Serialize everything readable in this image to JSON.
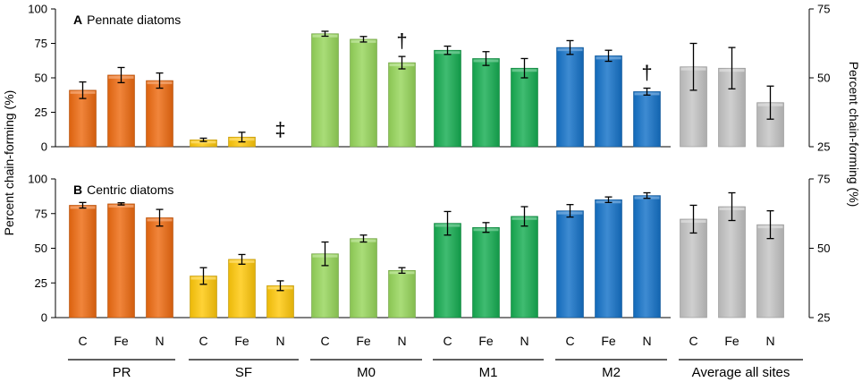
{
  "colors": {
    "PR": "#ee6a10",
    "SF": "#ffc80a",
    "M0": "#96d65a",
    "M1": "#16ad52",
    "M2": "#1472c8",
    "Average all sites": "#c4c4c4"
  },
  "chart_data": [
    {
      "type": "bar",
      "panel": "A",
      "title": "Pennate diatoms",
      "ylabel_left": "Percent chain-forming (%)",
      "ylabel_right": "Percent chain-forming (%)",
      "left_axis": {
        "ylim": [
          0,
          100
        ],
        "ticks": [
          "0",
          "25",
          "50",
          "75",
          "100"
        ]
      },
      "right_axis": {
        "ylim": [
          25,
          75
        ],
        "ticks": [
          "25",
          "50",
          "75"
        ]
      },
      "groups": [
        {
          "name": "PR",
          "axis": "left",
          "bars": [
            {
              "category": "C",
              "value": 41,
              "err": 6
            },
            {
              "category": "Fe",
              "value": 52,
              "err": 5.5
            },
            {
              "category": "N",
              "value": 48,
              "err": 5.5
            }
          ]
        },
        {
          "name": "SF",
          "axis": "left",
          "bars": [
            {
              "category": "C",
              "value": 5,
              "err": 1.2
            },
            {
              "category": "Fe",
              "value": 7,
              "err": 3.5
            },
            {
              "category": "N",
              "value": null,
              "err": null,
              "marker": "‡"
            }
          ]
        },
        {
          "name": "M0",
          "axis": "left",
          "bars": [
            {
              "category": "C",
              "value": 82,
              "err": 1.8
            },
            {
              "category": "Fe",
              "value": 78,
              "err": 2
            },
            {
              "category": "N",
              "value": 61,
              "err": 4.5,
              "marker": "†"
            }
          ]
        },
        {
          "name": "M1",
          "axis": "left",
          "bars": [
            {
              "category": "C",
              "value": 70,
              "err": 3
            },
            {
              "category": "Fe",
              "value": 64,
              "err": 5
            },
            {
              "category": "N",
              "value": 57,
              "err": 7
            }
          ]
        },
        {
          "name": "M2",
          "axis": "left",
          "bars": [
            {
              "category": "C",
              "value": 72,
              "err": 5
            },
            {
              "category": "Fe",
              "value": 66,
              "err": 4
            },
            {
              "category": "N",
              "value": 40,
              "err": 2.5,
              "marker": "†"
            }
          ]
        },
        {
          "name": "Average all sites",
          "axis": "right",
          "bars": [
            {
              "category": "C",
              "value": 54,
              "err": 8.5
            },
            {
              "category": "Fe",
              "value": 53.5,
              "err": 7.5
            },
            {
              "category": "N",
              "value": 41,
              "err": 6
            }
          ]
        }
      ]
    },
    {
      "type": "bar",
      "panel": "B",
      "title": "Centric diatoms",
      "ylabel_left": "Percent chain-forming (%)",
      "ylabel_right": "Percent chain-forming (%)",
      "left_axis": {
        "ylim": [
          0,
          100
        ],
        "ticks": [
          "0",
          "25",
          "50",
          "75",
          "100"
        ]
      },
      "right_axis": {
        "ylim": [
          25,
          75
        ],
        "ticks": [
          "25",
          "50",
          "75"
        ]
      },
      "groups": [
        {
          "name": "PR",
          "axis": "left",
          "bars": [
            {
              "category": "C",
              "value": 81,
              "err": 2
            },
            {
              "category": "Fe",
              "value": 82,
              "err": 0.8
            },
            {
              "category": "N",
              "value": 72,
              "err": 6
            }
          ]
        },
        {
          "name": "SF",
          "axis": "left",
          "bars": [
            {
              "category": "C",
              "value": 30,
              "err": 6
            },
            {
              "category": "Fe",
              "value": 42,
              "err": 3.5
            },
            {
              "category": "N",
              "value": 23,
              "err": 3.5
            }
          ]
        },
        {
          "name": "M0",
          "axis": "left",
          "bars": [
            {
              "category": "C",
              "value": 46,
              "err": 8.5
            },
            {
              "category": "Fe",
              "value": 57,
              "err": 2.5
            },
            {
              "category": "N",
              "value": 34,
              "err": 2
            }
          ]
        },
        {
          "name": "M1",
          "axis": "left",
          "bars": [
            {
              "category": "C",
              "value": 68,
              "err": 8.5
            },
            {
              "category": "Fe",
              "value": 65,
              "err": 3.5
            },
            {
              "category": "N",
              "value": 73,
              "err": 7
            }
          ]
        },
        {
          "name": "M2",
          "axis": "left",
          "bars": [
            {
              "category": "C",
              "value": 77,
              "err": 4.5
            },
            {
              "category": "Fe",
              "value": 85,
              "err": 2
            },
            {
              "category": "N",
              "value": 88,
              "err": 2
            }
          ]
        },
        {
          "name": "Average all sites",
          "axis": "right",
          "bars": [
            {
              "category": "C",
              "value": 60.5,
              "err": 5
            },
            {
              "category": "Fe",
              "value": 65,
              "err": 5
            },
            {
              "category": "N",
              "value": 58.5,
              "err": 5
            }
          ]
        }
      ]
    }
  ]
}
